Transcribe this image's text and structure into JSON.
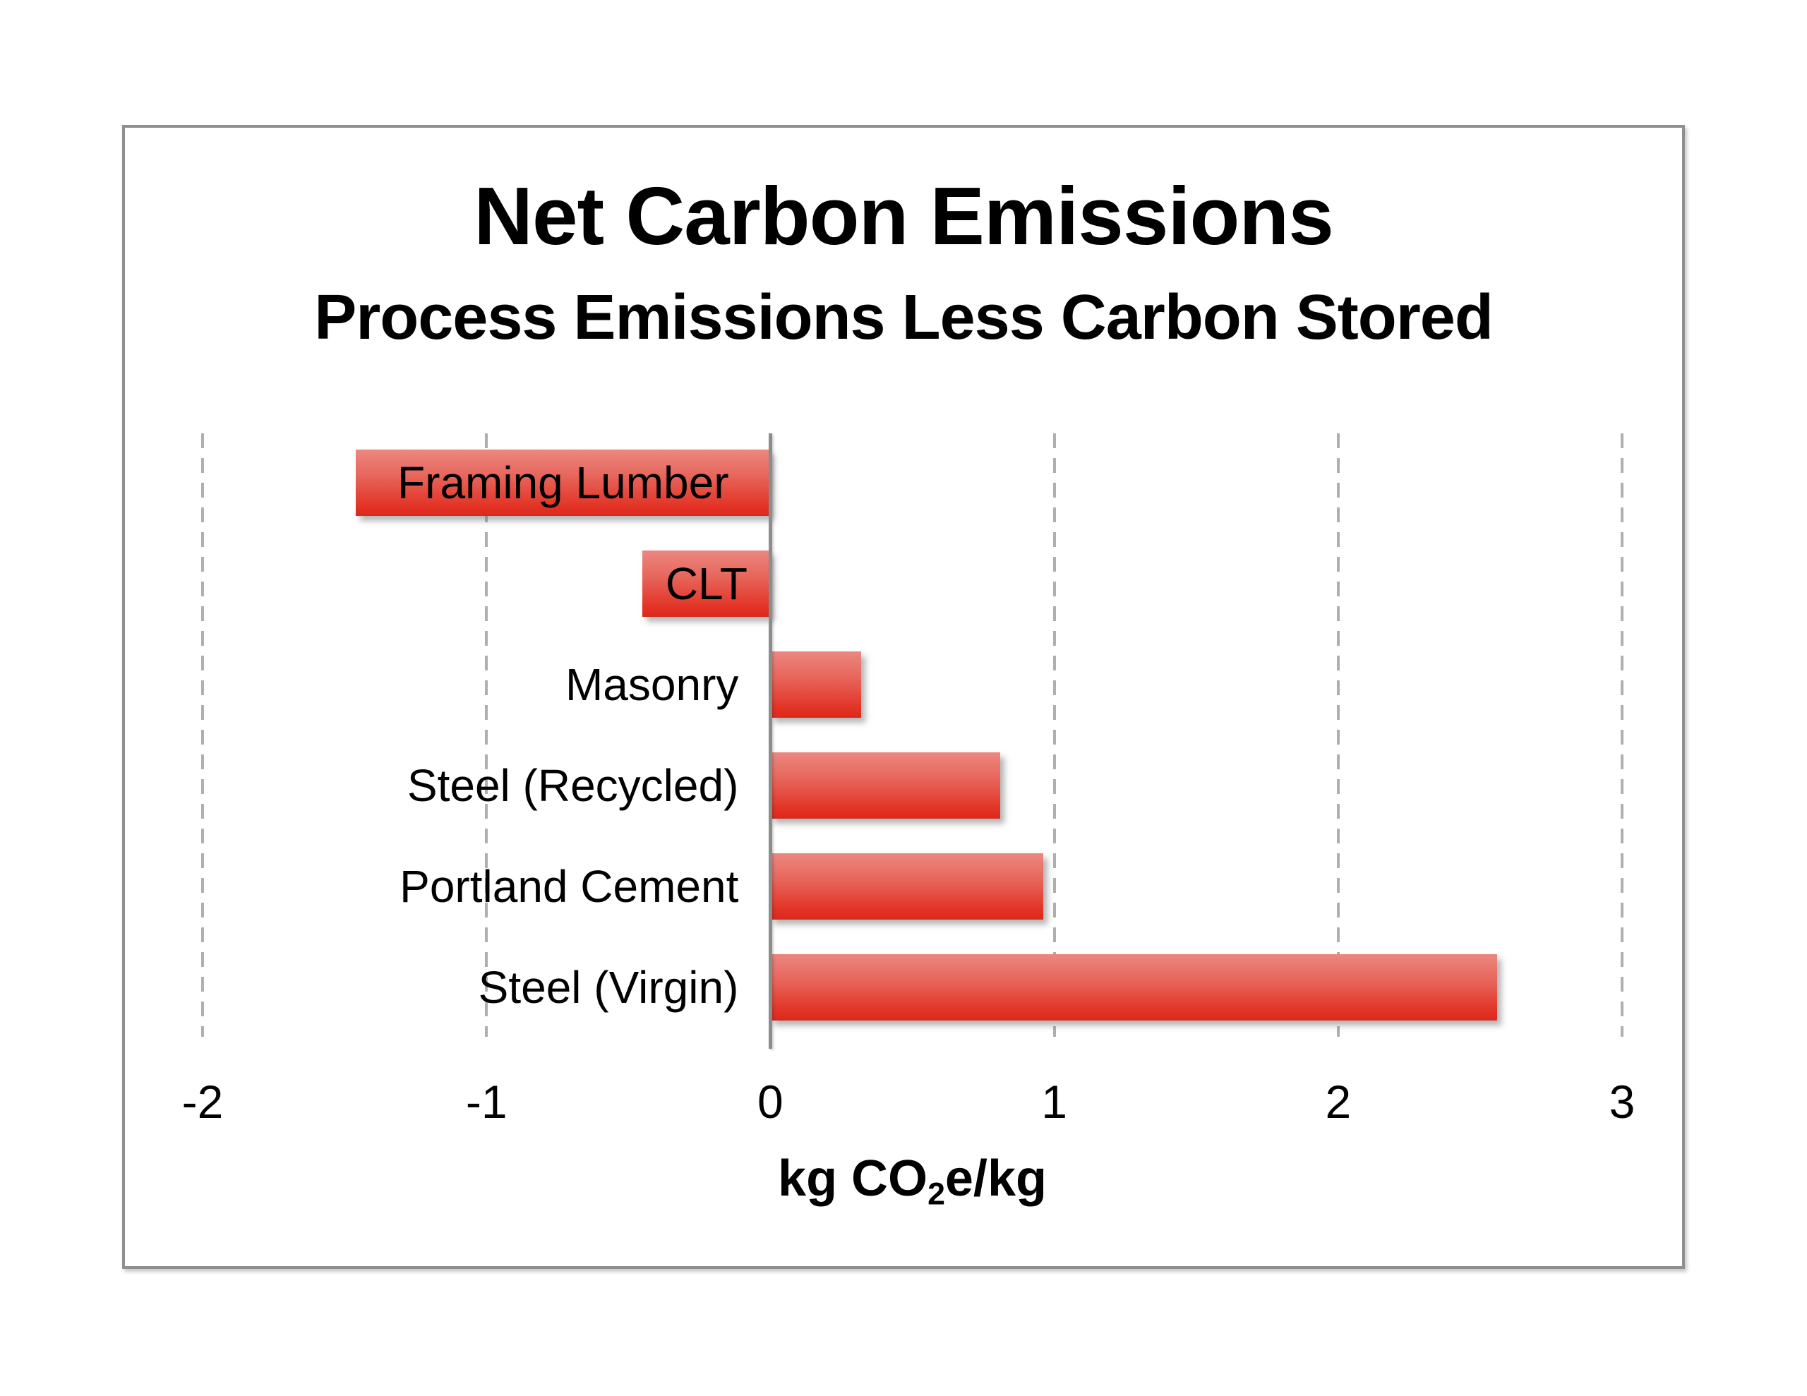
{
  "chart_data": {
    "type": "bar",
    "orientation": "horizontal",
    "title": "Net Carbon Emissions",
    "subtitle": "Process Emissions Less Carbon Stored",
    "xlabel": "kg CO2e/kg",
    "xlabel_parts": {
      "prefix": "kg CO",
      "sub": "2",
      "suffix": "e/kg"
    },
    "categories": [
      "Framing Lumber",
      "CLT",
      "Masonry",
      "Steel (Recycled)",
      "Portland Cement",
      "Steel (Virgin)"
    ],
    "values": [
      -1.46,
      -0.45,
      0.32,
      0.81,
      0.96,
      2.56
    ],
    "xlim": [
      -2,
      3
    ],
    "xticks": [
      -2,
      -1,
      0,
      1,
      2,
      3
    ],
    "grid": "vertical-dashed",
    "legend": "none",
    "colors": {
      "bar_gradient_top": "#EB8881",
      "bar_gradient_upper_mid": "#E7655B",
      "bar_gradient_lower_mid": "#E23426",
      "bar_gradient_bottom": "#E02A1E",
      "bar_bottom_edge": "#C8301F",
      "gridline": "#AFAFAF",
      "axis_line": "#8C8C8C",
      "frame_border": "#8F8F8F",
      "text": "#000000",
      "background": "#FFFFFF"
    }
  }
}
